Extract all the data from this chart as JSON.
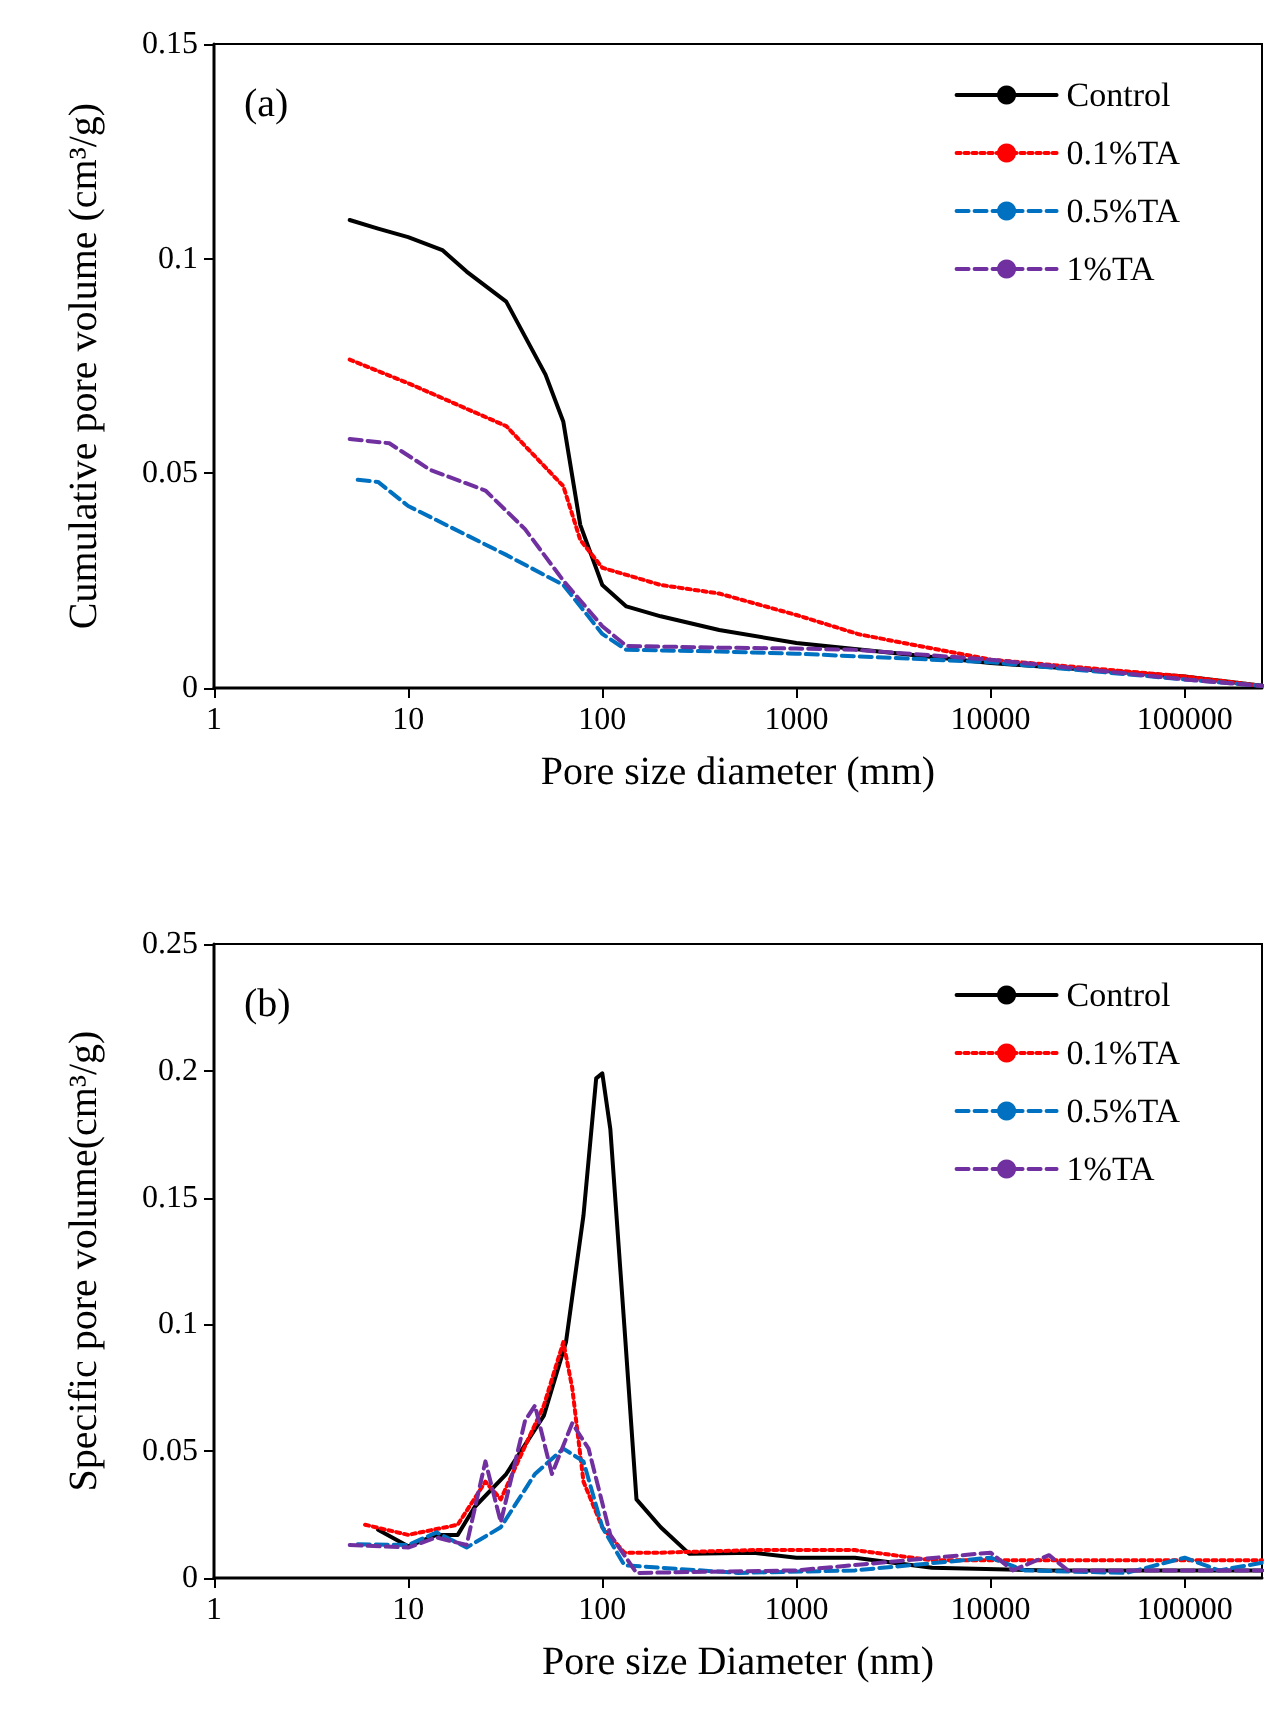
{
  "chart_data": [
    {
      "type": "line",
      "annotations": [
        "(a)"
      ],
      "xlabel": "Pore size diameter (mm)",
      "ylabel": "Cumulative pore volume (cm³/g)",
      "log": "x",
      "xlim": [
        1,
        250000
      ],
      "xticks": [
        1,
        10,
        100,
        1000,
        10000,
        100000
      ],
      "ylim": [
        0,
        0.15
      ],
      "yticks": [
        0,
        0.05,
        0.1,
        0.15
      ],
      "grid": false,
      "legend": "top right",
      "marker": "none",
      "series": [
        {
          "name": "Control",
          "color": "#000000",
          "line_style": "solid",
          "x": [
            5,
            7,
            10,
            15,
            20,
            32,
            51,
            63,
            77,
            100,
            133,
            200,
            400,
            1000,
            10000,
            100000,
            250000
          ],
          "values": [
            0.109,
            0.107,
            0.105,
            0.102,
            0.097,
            0.09,
            0.073,
            0.062,
            0.038,
            0.024,
            0.019,
            0.0167,
            0.0135,
            0.0105,
            0.0058,
            0.0027,
            0.0005
          ]
        },
        {
          "name": "0.1%TA",
          "color": "#ff0000",
          "line_style": "dotted",
          "x": [
            5,
            10,
            32,
            63,
            77,
            100,
            200,
            400,
            1000,
            2100,
            10000,
            100000,
            250000
          ],
          "values": [
            0.0765,
            0.071,
            0.061,
            0.047,
            0.0345,
            0.028,
            0.024,
            0.022,
            0.017,
            0.0125,
            0.0066,
            0.0027,
            0.0005
          ]
        },
        {
          "name": "0.5%TA",
          "color": "#0070c0",
          "line_style": "dashed",
          "x": [
            5.5,
            7,
            10,
            32,
            63,
            100,
            133,
            400,
            1000,
            10000,
            100000,
            250000
          ],
          "values": [
            0.0485,
            0.048,
            0.0424,
            0.031,
            0.024,
            0.0126,
            0.0089,
            0.0085,
            0.008,
            0.006,
            0.002,
            0.0005
          ]
        },
        {
          "name": "1%TA",
          "color": "#7030a0",
          "line_style": "dashed",
          "x": [
            5,
            8,
            13,
            25,
            40,
            63,
            100,
            133,
            400,
            1000,
            2000,
            10000,
            100000,
            250000
          ],
          "values": [
            0.058,
            0.057,
            0.0508,
            0.046,
            0.037,
            0.025,
            0.0144,
            0.0098,
            0.0094,
            0.0092,
            0.0089,
            0.0066,
            0.002,
            0.0005
          ]
        }
      ]
    },
    {
      "type": "line",
      "annotations": [
        "(b)"
      ],
      "xlabel": "Pore size Diameter (nm)",
      "ylabel": "Specific pore volume(cm³/g)",
      "log": "x",
      "xlim": [
        1,
        250000
      ],
      "xticks": [
        1,
        10,
        100,
        1000,
        10000,
        100000
      ],
      "ylim": [
        0,
        0.25
      ],
      "yticks": [
        0,
        0.05,
        0.1,
        0.15,
        0.2,
        0.25
      ],
      "grid": false,
      "legend": "top right",
      "marker": "none",
      "series": [
        {
          "name": "Control",
          "color": "#000000",
          "line_style": "solid",
          "x": [
            7,
            10,
            14,
            18,
            22,
            32,
            50,
            65,
            80,
            93,
            100,
            110,
            130,
            150,
            200,
            280,
            600,
            1000,
            2000,
            5000,
            20000,
            100000,
            250000
          ],
          "values": [
            0.019,
            0.0125,
            0.017,
            0.017,
            0.028,
            0.041,
            0.064,
            0.093,
            0.143,
            0.197,
            0.199,
            0.177,
            0.099,
            0.031,
            0.02,
            0.0096,
            0.01,
            0.008,
            0.008,
            0.004,
            0.003,
            0.003,
            0.003
          ]
        },
        {
          "name": "0.1%TA",
          "color": "#ff0000",
          "line_style": "dotted",
          "x": [
            6,
            10,
            18,
            25,
            30,
            40,
            50,
            63,
            70,
            80,
            100,
            130,
            200,
            600,
            2000,
            5000,
            20000,
            100000,
            250000
          ],
          "values": [
            0.021,
            0.017,
            0.021,
            0.038,
            0.031,
            0.052,
            0.068,
            0.093,
            0.075,
            0.038,
            0.02,
            0.01,
            0.01,
            0.011,
            0.011,
            0.007,
            0.007,
            0.007,
            0.007
          ]
        },
        {
          "name": "0.5%TA",
          "color": "#0070c0",
          "line_style": "dashed",
          "x": [
            5.5,
            10,
            14,
            20,
            30,
            45,
            63,
            80,
            100,
            130,
            500,
            2000,
            10000,
            15000,
            50000,
            100000,
            150000,
            250000
          ],
          "values": [
            0.0133,
            0.013,
            0.018,
            0.012,
            0.02,
            0.041,
            0.051,
            0.046,
            0.02,
            0.005,
            0.002,
            0.003,
            0.008,
            0.003,
            0.002,
            0.008,
            0.003,
            0.006
          ]
        },
        {
          "name": "1%TA",
          "color": "#7030a0",
          "line_style": "dashed",
          "x": [
            5,
            10,
            14,
            20,
            25,
            30,
            40,
            45,
            55,
            70,
            85,
            110,
            150,
            1000,
            10000,
            13000,
            20000,
            25000,
            100000,
            250000
          ],
          "values": [
            0.013,
            0.012,
            0.016,
            0.013,
            0.046,
            0.022,
            0.062,
            0.068,
            0.041,
            0.061,
            0.051,
            0.017,
            0.002,
            0.003,
            0.01,
            0.003,
            0.009,
            0.003,
            0.003,
            0.003
          ]
        }
      ]
    }
  ]
}
